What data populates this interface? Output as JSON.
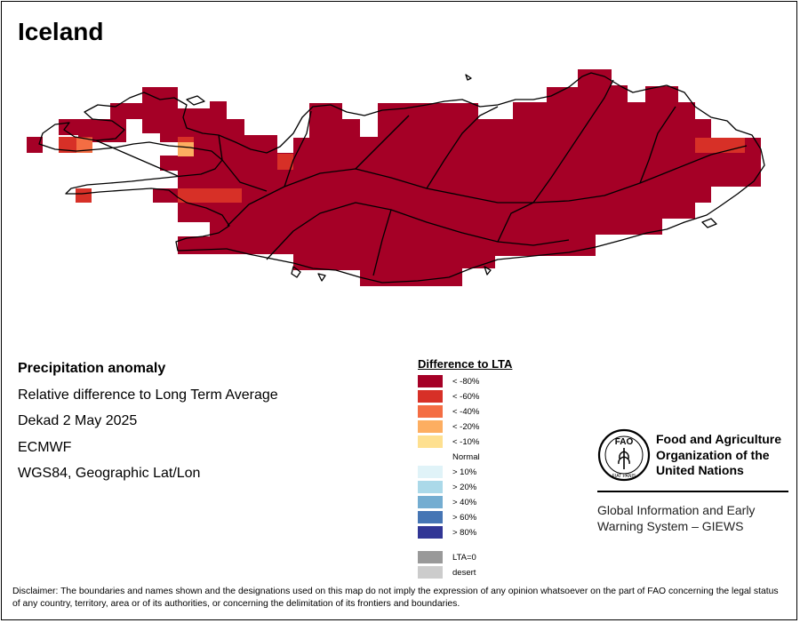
{
  "map": {
    "title": "Iceland",
    "colors": {
      "outline": "#000000",
      "lt80": "#a50026",
      "lt60": "#d73027",
      "lt40": "#f46d43",
      "lt20": "#fdae61",
      "lt10": "#fee090"
    }
  },
  "info": {
    "title": "Precipitation anomaly",
    "subtitle": "Relative difference to Long Term Average",
    "period": "Dekad 2 May 2025",
    "source": "ECMWF",
    "projection": "WGS84, Geographic Lat/Lon"
  },
  "legend": {
    "title": "Difference to LTA",
    "items": [
      {
        "label": "< -80%",
        "color": "#a50026"
      },
      {
        "label": "< -60%",
        "color": "#d73027"
      },
      {
        "label": "< -40%",
        "color": "#f46d43"
      },
      {
        "label": "< -20%",
        "color": "#fdae61"
      },
      {
        "label": "< -10%",
        "color": "#fee090"
      },
      {
        "label": "Normal",
        "color": "#ffffff"
      },
      {
        "label": "> 10%",
        "color": "#e0f3f8"
      },
      {
        "label": "> 20%",
        "color": "#abd9e9"
      },
      {
        "label": "> 40%",
        "color": "#74add1"
      },
      {
        "label": "> 60%",
        "color": "#4575b4"
      },
      {
        "label": "> 80%",
        "color": "#313695"
      },
      {
        "label": "LTA=0",
        "color": "#999999"
      },
      {
        "label": "desert",
        "color": "#cccccc"
      }
    ]
  },
  "org": {
    "logo_text": "FAO",
    "logo_motto": "FIAT PANIS",
    "name_line1": "Food and Agriculture",
    "name_line2": "Organization of the",
    "name_line3": "United Nations",
    "giews_line1": "Global Information and Early",
    "giews_line2": "Warning System – GIEWS"
  },
  "disclaimer": "Disclaimer: The boundaries and names shown and the designations used on this map do not imply the expression of any opinion whatsoever on the part of FAO concerning the legal status of any country, territory, area or of its authorities, or concerning the delimitation of its frontiers and boundaries."
}
